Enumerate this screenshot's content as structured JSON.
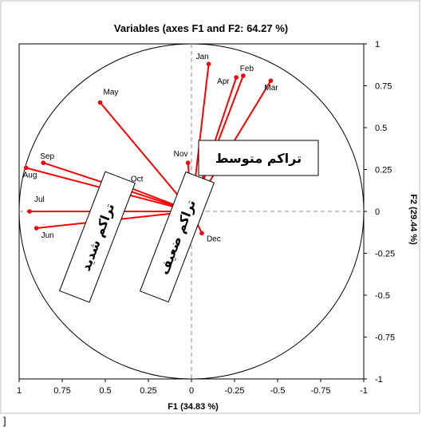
{
  "chart_data": {
    "type": "scatter",
    "title": "Variables (axes F1 and F2: 64.27 %)",
    "xlabel": "F1 (34.83 %)",
    "ylabel": "F2 (29.44 %)",
    "xlim": [
      1,
      -1
    ],
    "ylim": [
      -1,
      1
    ],
    "x_ticks": [
      "1",
      "0.75",
      "0.5",
      "0.25",
      "0",
      "-0.25",
      "-0.5",
      "-0.75",
      "-1"
    ],
    "y_ticks": [
      "1",
      "0.75",
      "0.5",
      "0.25",
      "0",
      "-0.25",
      "-0.5",
      "-0.75",
      "-1"
    ],
    "vector_color": "#ff0000",
    "circle_color": "#000000",
    "points": [
      {
        "label": "Jan",
        "x": -0.1,
        "y": 0.88
      },
      {
        "label": "Feb",
        "x": -0.3,
        "y": 0.81
      },
      {
        "label": "Mar",
        "x": -0.46,
        "y": 0.78
      },
      {
        "label": "Apr",
        "x": -0.26,
        "y": 0.8
      },
      {
        "label": "May",
        "x": 0.53,
        "y": 0.65
      },
      {
        "label": "Jun",
        "x": 0.9,
        "y": -0.1
      },
      {
        "label": "Jul",
        "x": 0.94,
        "y": 0.0
      },
      {
        "label": "Aug",
        "x": 0.96,
        "y": 0.26
      },
      {
        "label": "Sep",
        "x": 0.86,
        "y": 0.29
      },
      {
        "label": "Oct",
        "x": 0.38,
        "y": 0.15
      },
      {
        "label": "Nov",
        "x": 0.02,
        "y": 0.29
      },
      {
        "label": "Dec",
        "x": -0.06,
        "y": -0.13
      }
    ],
    "annotations": [
      "تراكم متوسط",
      "تراكم شديد",
      "تراكم ضعيف"
    ]
  },
  "page_mark": "]"
}
